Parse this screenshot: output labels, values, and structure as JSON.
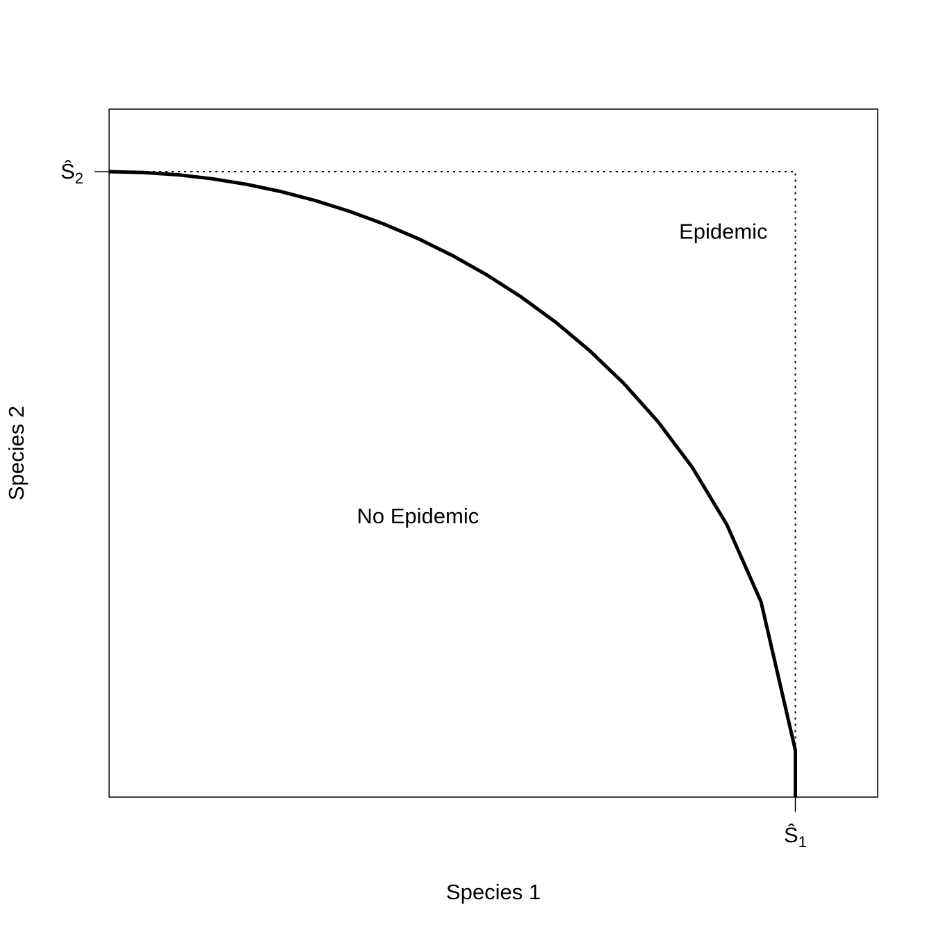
{
  "chart_data": {
    "type": "line",
    "title": "",
    "xlabel": "Species 1",
    "ylabel": "Species 2",
    "xlim": [
      0,
      1.12
    ],
    "ylim": [
      0,
      1.1
    ],
    "ticks": {
      "x": [
        {
          "value": 1,
          "label": "Ŝ",
          "subscript": "1"
        }
      ],
      "y": [
        {
          "value": 1,
          "label": "Ŝ",
          "subscript": "2"
        }
      ]
    },
    "series": [
      {
        "style": "solid",
        "color": "#000000",
        "x": [
          0,
          0.05,
          0.1,
          0.15,
          0.2,
          0.25,
          0.3,
          0.35,
          0.4,
          0.45,
          0.5,
          0.55,
          0.6,
          0.65,
          0.7,
          0.75,
          0.8,
          0.85,
          0.9,
          0.95,
          1,
          1
        ],
        "y": [
          1,
          0.9987,
          0.995,
          0.9887,
          0.9798,
          0.9682,
          0.9539,
          0.9367,
          0.9165,
          0.893,
          0.866,
          0.8352,
          0.8,
          0.7599,
          0.7141,
          0.6614,
          0.6,
          0.5268,
          0.4359,
          0.3122,
          0.075,
          0
        ]
      },
      {
        "style": "dotted",
        "color": "#000000",
        "x": [
          0,
          1,
          1
        ],
        "y": [
          1,
          1,
          0
        ]
      }
    ],
    "annotations": [
      {
        "text": "Epidemic",
        "x": 0.895,
        "y": 0.905
      },
      {
        "text": "No Epidemic",
        "x": 0.45,
        "y": 0.45
      }
    ],
    "grid": false,
    "legend": "none"
  }
}
